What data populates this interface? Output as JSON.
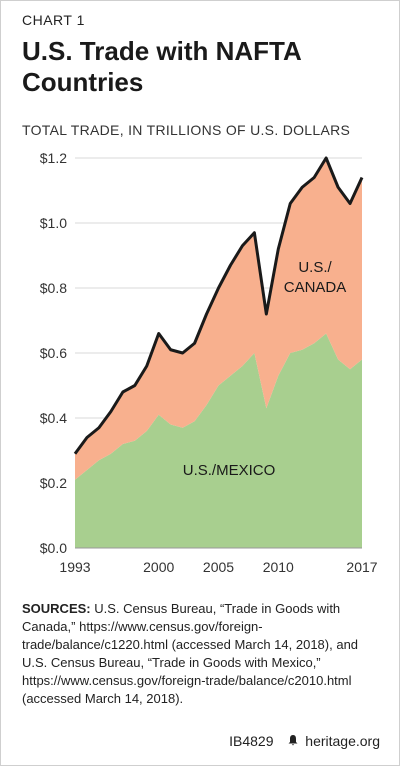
{
  "header": {
    "kicker": "CHART 1",
    "title": "U.S. Trade with NAFTA Countries",
    "subtitle": "TOTAL TRADE, IN TRILLIONS OF U.S. DOLLARS"
  },
  "chart_data": {
    "type": "area",
    "stacked": true,
    "x": [
      1993,
      1994,
      1995,
      1996,
      1997,
      1998,
      1999,
      2000,
      2001,
      2002,
      2003,
      2004,
      2005,
      2006,
      2007,
      2008,
      2009,
      2010,
      2011,
      2012,
      2013,
      2014,
      2015,
      2016,
      2017
    ],
    "series": [
      {
        "name": "U.S./MEXICO",
        "color": "#a8cf8f",
        "values": [
          0.21,
          0.24,
          0.27,
          0.29,
          0.32,
          0.33,
          0.36,
          0.41,
          0.38,
          0.37,
          0.39,
          0.44,
          0.5,
          0.53,
          0.56,
          0.6,
          0.43,
          0.53,
          0.6,
          0.61,
          0.63,
          0.66,
          0.58,
          0.55,
          0.58
        ]
      },
      {
        "name": "U.S./CANADA",
        "color": "#f8b08e",
        "values": [
          0.08,
          0.1,
          0.1,
          0.13,
          0.16,
          0.17,
          0.2,
          0.25,
          0.23,
          0.23,
          0.24,
          0.28,
          0.3,
          0.34,
          0.37,
          0.37,
          0.29,
          0.39,
          0.46,
          0.5,
          0.51,
          0.54,
          0.53,
          0.51,
          0.56
        ]
      }
    ],
    "total_line_color": "#1a1a1a",
    "ylim": [
      0,
      1.2
    ],
    "xlim": [
      1993,
      2017
    ],
    "y_ticks": [
      0,
      0.2,
      0.4,
      0.6,
      0.8,
      1.0,
      1.2
    ],
    "y_tick_labels": [
      "$0.0",
      "$0.2",
      "$0.4",
      "$0.6",
      "$0.8",
      "$1.0",
      "$1.2"
    ],
    "x_ticks": [
      1993,
      2000,
      2005,
      2010,
      2017
    ],
    "x_tick_labels": [
      "1993",
      "2000",
      "2005",
      "2010",
      "2017"
    ],
    "area_labels": {
      "canada_line1": "U.S./",
      "canada_line2": "CANADA",
      "mexico": "U.S./MEXICO"
    },
    "grid": true
  },
  "sources": {
    "label": "SOURCES:",
    "text": "U.S. Census Bureau, “Trade in Goods with Canada,” https://www.census.gov/foreign-trade/balance/c1220.html (accessed March 14, 2018), and U.S. Census Bureau, “Trade in Goods with Mexico,” https://www.census.gov/foreign-trade/balance/c2010.html (accessed March 14, 2018)."
  },
  "footer": {
    "code": "IB4829",
    "bell_icon": "bell-icon",
    "site": "heritage.org"
  }
}
